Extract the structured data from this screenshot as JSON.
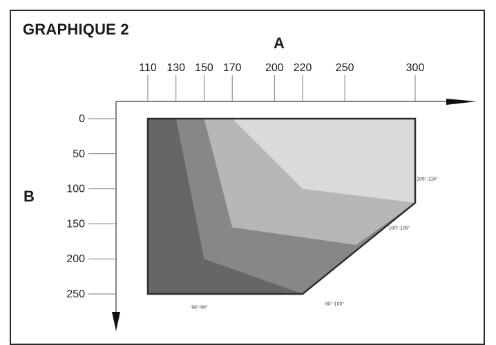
{
  "chart_data": {
    "type": "area",
    "title": "GRAPHIQUE 2",
    "xlabel": "A",
    "ylabel": "B",
    "x_ticks": [
      110,
      130,
      150,
      170,
      200,
      220,
      250,
      300
    ],
    "y_ticks": [
      0,
      50,
      100,
      150,
      200,
      250
    ],
    "xlim": [
      110,
      300
    ],
    "ylim": [
      0,
      250
    ],
    "y_inverted": true,
    "grid": false,
    "region_order": [
      "90-90",
      "90-100",
      "100-105",
      "105-115"
    ],
    "colors": {
      "90-90": "#666666",
      "90-100": "#878787",
      "100-105": "#b7b7b7",
      "105-115": "#dadada",
      "outline": "#2d2d2d",
      "axis": "#555555"
    },
    "region_labels": {
      "90-90": "90°-90°",
      "90-100": "90°-100°",
      "100-105": "100°-105°",
      "105-115": "105°-115°"
    },
    "boundaries": {
      "outer": [
        [
          110,
          0
        ],
        [
          300,
          0
        ],
        [
          300,
          120
        ],
        [
          220,
          250
        ],
        [
          110,
          250
        ]
      ],
      "b1": [
        [
          130,
          0
        ],
        [
          150,
          200
        ],
        [
          220,
          250
        ]
      ],
      "b2": [
        [
          150,
          0
        ],
        [
          170,
          155
        ],
        [
          258,
          180
        ]
      ],
      "b3": [
        [
          170,
          0
        ],
        [
          220,
          100
        ],
        [
          300,
          120
        ]
      ]
    }
  }
}
